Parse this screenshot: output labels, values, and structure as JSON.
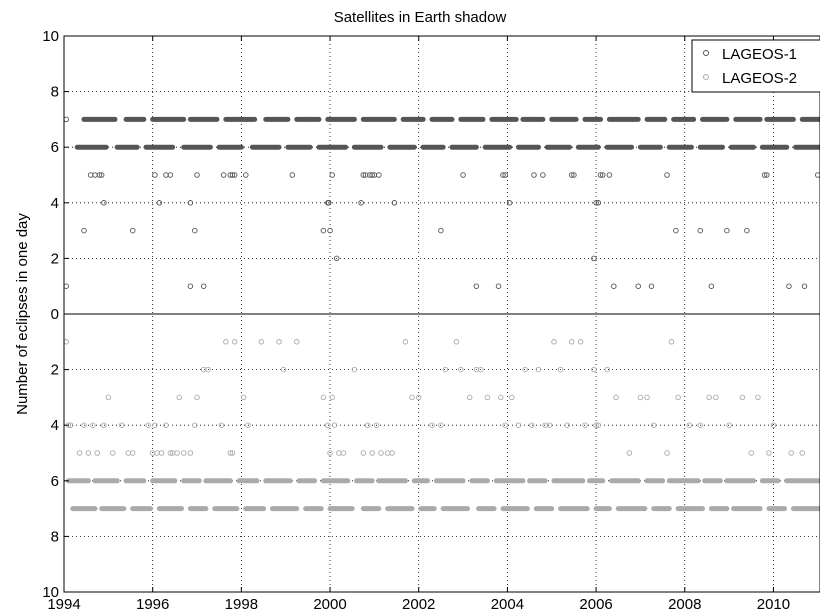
{
  "chart_data": {
    "type": "scatter",
    "title": "Satellites in Earth shadow",
    "xlabel": "",
    "ylabel": "Number of eclipses in one day",
    "xlim": [
      1994,
      2011.05
    ],
    "ylim_top": [
      0,
      10
    ],
    "ylim_bottom": [
      0,
      10
    ],
    "x_ticks": [
      "1994",
      "1996",
      "1998",
      "2000",
      "2002",
      "2004",
      "2006",
      "2008",
      "2010"
    ],
    "y_ticks": [
      "10",
      "8",
      "6",
      "4",
      "2",
      "0",
      "2",
      "4",
      "6",
      "8",
      "10"
    ],
    "grid": true,
    "legend_position": "top-right",
    "series": [
      {
        "name": "LAGEOS-1",
        "color": "#555555",
        "panel": "top",
        "bands": [
          {
            "y": 7,
            "segments": [
              [
                1994.45,
                1995.15
              ],
              [
                1995.4,
                1995.8
              ],
              [
                1996.0,
                1996.7
              ],
              [
                1996.85,
                1997.45
              ],
              [
                1997.65,
                1998.3
              ],
              [
                1998.55,
                1999.05
              ],
              [
                1999.25,
                1999.75
              ],
              [
                1999.95,
                2000.55
              ],
              [
                2000.75,
                2001.45
              ],
              [
                2001.65,
                2002.1
              ],
              [
                2002.3,
                2002.75
              ],
              [
                2002.95,
                2003.45
              ],
              [
                2003.65,
                2004.2
              ],
              [
                2004.35,
                2004.8
              ],
              [
                2005.0,
                2005.55
              ],
              [
                2005.75,
                2006.1
              ],
              [
                2006.3,
                2006.95
              ],
              [
                2007.15,
                2007.55
              ],
              [
                2007.75,
                2008.2
              ],
              [
                2008.4,
                2008.95
              ],
              [
                2009.15,
                2009.7
              ],
              [
                2009.85,
                2010.45
              ],
              [
                2010.65,
                2011.05
              ]
            ]
          },
          {
            "y": 6,
            "segments": [
              [
                1994.3,
                1994.95
              ],
              [
                1995.2,
                1995.65
              ],
              [
                1995.85,
                1996.45
              ],
              [
                1996.7,
                1997.3
              ],
              [
                1997.5,
                1998.0
              ],
              [
                1998.25,
                1998.85
              ],
              [
                1999.05,
                1999.55
              ],
              [
                1999.75,
                2000.35
              ],
              [
                2000.55,
                2001.15
              ],
              [
                2001.35,
                2001.9
              ],
              [
                2002.1,
                2002.55
              ],
              [
                2002.75,
                2003.3
              ],
              [
                2003.5,
                2004.05
              ],
              [
                2004.25,
                2004.7
              ],
              [
                2004.9,
                2005.4
              ],
              [
                2005.6,
                2006.05
              ],
              [
                2006.25,
                2006.8
              ],
              [
                2007.0,
                2007.45
              ],
              [
                2007.65,
                2008.15
              ],
              [
                2008.35,
                2008.85
              ],
              [
                2009.05,
                2009.55
              ],
              [
                2009.75,
                2010.3
              ],
              [
                2010.5,
                2011.05
              ]
            ]
          }
        ],
        "points": [
          [
            1994.05,
            7
          ],
          [
            1994.05,
            1
          ],
          [
            1994.45,
            3
          ],
          [
            1994.6,
            5
          ],
          [
            1994.7,
            5
          ],
          [
            1994.8,
            5
          ],
          [
            1994.85,
            5
          ],
          [
            1994.9,
            4
          ],
          [
            1995.55,
            3
          ],
          [
            1996.05,
            5
          ],
          [
            1996.15,
            4
          ],
          [
            1996.3,
            5
          ],
          [
            1996.4,
            5
          ],
          [
            1996.85,
            4
          ],
          [
            1996.85,
            1
          ],
          [
            1996.95,
            3
          ],
          [
            1997.0,
            5
          ],
          [
            1997.15,
            1
          ],
          [
            1997.6,
            5
          ],
          [
            1997.75,
            5
          ],
          [
            1997.8,
            5
          ],
          [
            1997.85,
            5
          ],
          [
            1998.1,
            5
          ],
          [
            1999.15,
            5
          ],
          [
            1999.85,
            3
          ],
          [
            1999.95,
            4
          ],
          [
            1999.97,
            4
          ],
          [
            2000.0,
            3
          ],
          [
            2000.05,
            5
          ],
          [
            2000.15,
            2
          ],
          [
            2000.7,
            4
          ],
          [
            2000.75,
            5
          ],
          [
            2000.8,
            5
          ],
          [
            2000.9,
            5
          ],
          [
            2000.95,
            5
          ],
          [
            2001.0,
            5
          ],
          [
            2001.1,
            5
          ],
          [
            2001.45,
            4
          ],
          [
            2002.5,
            3
          ],
          [
            2003.0,
            5
          ],
          [
            2003.3,
            1
          ],
          [
            2003.8,
            1
          ],
          [
            2003.9,
            5
          ],
          [
            2003.95,
            5
          ],
          [
            2004.05,
            4
          ],
          [
            2004.6,
            5
          ],
          [
            2004.8,
            5
          ],
          [
            2005.45,
            5
          ],
          [
            2005.5,
            5
          ],
          [
            2005.95,
            2
          ],
          [
            2006.0,
            4
          ],
          [
            2006.05,
            4
          ],
          [
            2006.1,
            5
          ],
          [
            2006.15,
            5
          ],
          [
            2006.3,
            5
          ],
          [
            2006.4,
            1
          ],
          [
            2006.95,
            1
          ],
          [
            2007.25,
            1
          ],
          [
            2007.6,
            5
          ],
          [
            2007.8,
            3
          ],
          [
            2008.35,
            3
          ],
          [
            2008.6,
            1
          ],
          [
            2008.95,
            3
          ],
          [
            2009.4,
            3
          ],
          [
            2009.8,
            5
          ],
          [
            2009.85,
            5
          ],
          [
            2010.35,
            1
          ],
          [
            2010.7,
            1
          ],
          [
            2011.0,
            5
          ]
        ]
      },
      {
        "name": "LAGEOS-2",
        "color": "#aaaaaa",
        "panel": "bottom",
        "bands": [
          {
            "y": 6,
            "segments": [
              [
                1994.1,
                1994.55
              ],
              [
                1994.7,
                1995.2
              ],
              [
                1995.4,
                1995.8
              ],
              [
                1996.0,
                1996.5
              ],
              [
                1996.7,
                1997.05
              ],
              [
                1997.2,
                1997.75
              ],
              [
                1997.95,
                1998.35
              ],
              [
                1998.55,
                1999.1
              ],
              [
                1999.3,
                1999.65
              ],
              [
                1999.85,
                2000.4
              ],
              [
                2000.6,
                2000.95
              ],
              [
                2001.1,
                2001.7
              ],
              [
                2001.9,
                2002.2
              ],
              [
                2002.4,
                2003.0
              ],
              [
                2003.2,
                2003.55
              ],
              [
                2003.75,
                2004.35
              ],
              [
                2004.5,
                2004.85
              ],
              [
                2005.05,
                2005.7
              ],
              [
                2005.85,
                2006.15
              ],
              [
                2006.35,
                2006.95
              ],
              [
                2007.15,
                2007.5
              ],
              [
                2007.65,
                2008.3
              ],
              [
                2008.45,
                2008.8
              ],
              [
                2008.95,
                2009.55
              ],
              [
                2009.75,
                2010.1
              ],
              [
                2010.3,
                2011.05
              ]
            ]
          },
          {
            "y": 7,
            "segments": [
              [
                1994.2,
                1994.7
              ],
              [
                1994.85,
                1995.35
              ],
              [
                1995.55,
                1995.95
              ],
              [
                1996.15,
                1996.65
              ],
              [
                1996.85,
                1997.2
              ],
              [
                1997.4,
                1997.9
              ],
              [
                1998.1,
                1998.5
              ],
              [
                1998.7,
                1999.25
              ],
              [
                1999.45,
                1999.8
              ],
              [
                2000.0,
                2000.5
              ],
              [
                2000.75,
                2001.1
              ],
              [
                2001.3,
                2001.85
              ],
              [
                2002.05,
                2002.35
              ],
              [
                2002.55,
                2003.1
              ],
              [
                2003.35,
                2003.7
              ],
              [
                2003.9,
                2004.45
              ],
              [
                2004.65,
                2005.0
              ],
              [
                2005.2,
                2005.8
              ],
              [
                2006.0,
                2006.3
              ],
              [
                2006.5,
                2007.1
              ],
              [
                2007.3,
                2007.65
              ],
              [
                2007.85,
                2008.4
              ],
              [
                2008.6,
                2008.95
              ],
              [
                2009.1,
                2009.7
              ],
              [
                2009.9,
                2010.25
              ],
              [
                2010.45,
                2011.05
              ]
            ]
          }
        ],
        "points": [
          [
            1994.05,
            1
          ],
          [
            1994.1,
            4
          ],
          [
            1994.15,
            4
          ],
          [
            1994.35,
            5
          ],
          [
            1994.45,
            4
          ],
          [
            1994.55,
            5
          ],
          [
            1994.65,
            4
          ],
          [
            1994.75,
            5
          ],
          [
            1994.9,
            4
          ],
          [
            1995.0,
            3
          ],
          [
            1995.1,
            5
          ],
          [
            1995.3,
            4
          ],
          [
            1995.45,
            5
          ],
          [
            1995.55,
            5
          ],
          [
            1995.9,
            4
          ],
          [
            1996.0,
            5
          ],
          [
            1996.05,
            4
          ],
          [
            1996.1,
            5
          ],
          [
            1996.2,
            5
          ],
          [
            1996.3,
            4
          ],
          [
            1996.4,
            5
          ],
          [
            1996.45,
            5
          ],
          [
            1996.55,
            5
          ],
          [
            1996.6,
            3
          ],
          [
            1996.7,
            5
          ],
          [
            1996.85,
            5
          ],
          [
            1996.95,
            4
          ],
          [
            1997.0,
            3
          ],
          [
            1997.15,
            2
          ],
          [
            1997.25,
            2
          ],
          [
            1997.55,
            4
          ],
          [
            1997.65,
            1
          ],
          [
            1997.75,
            5
          ],
          [
            1997.8,
            5
          ],
          [
            1997.85,
            1
          ],
          [
            1998.05,
            3
          ],
          [
            1998.15,
            4
          ],
          [
            1998.45,
            1
          ],
          [
            1998.85,
            1
          ],
          [
            1998.95,
            2
          ],
          [
            1999.25,
            1
          ],
          [
            1999.85,
            3
          ],
          [
            1999.95,
            4
          ],
          [
            2000.0,
            5
          ],
          [
            2000.05,
            3
          ],
          [
            2000.1,
            4
          ],
          [
            2000.2,
            5
          ],
          [
            2000.3,
            5
          ],
          [
            2000.55,
            2
          ],
          [
            2000.75,
            5
          ],
          [
            2000.85,
            4
          ],
          [
            2000.95,
            5
          ],
          [
            2001.05,
            4
          ],
          [
            2001.15,
            5
          ],
          [
            2001.3,
            5
          ],
          [
            2001.4,
            5
          ],
          [
            2001.7,
            1
          ],
          [
            2001.85,
            3
          ],
          [
            2002.0,
            3
          ],
          [
            2002.3,
            4
          ],
          [
            2002.5,
            4
          ],
          [
            2002.6,
            2
          ],
          [
            2002.85,
            1
          ],
          [
            2002.95,
            2
          ],
          [
            2003.15,
            3
          ],
          [
            2003.3,
            2
          ],
          [
            2003.4,
            2
          ],
          [
            2003.55,
            3
          ],
          [
            2003.85,
            3
          ],
          [
            2003.95,
            4
          ],
          [
            2004.1,
            3
          ],
          [
            2004.25,
            4
          ],
          [
            2004.4,
            2
          ],
          [
            2004.55,
            4
          ],
          [
            2004.7,
            2
          ],
          [
            2004.85,
            4
          ],
          [
            2004.95,
            4
          ],
          [
            2005.05,
            1
          ],
          [
            2005.2,
            2
          ],
          [
            2005.35,
            4
          ],
          [
            2005.45,
            1
          ],
          [
            2005.65,
            1
          ],
          [
            2005.75,
            4
          ],
          [
            2005.95,
            2
          ],
          [
            2006.0,
            4
          ],
          [
            2006.05,
            4
          ],
          [
            2006.25,
            2
          ],
          [
            2006.45,
            3
          ],
          [
            2006.75,
            5
          ],
          [
            2007.0,
            3
          ],
          [
            2007.15,
            3
          ],
          [
            2007.3,
            4
          ],
          [
            2007.6,
            5
          ],
          [
            2007.7,
            1
          ],
          [
            2007.85,
            3
          ],
          [
            2008.1,
            4
          ],
          [
            2008.35,
            4
          ],
          [
            2008.55,
            3
          ],
          [
            2008.7,
            3
          ],
          [
            2009.0,
            4
          ],
          [
            2009.3,
            3
          ],
          [
            2009.5,
            5
          ],
          [
            2009.65,
            3
          ],
          [
            2009.9,
            5
          ],
          [
            2010.0,
            4
          ],
          [
            2010.4,
            5
          ],
          [
            2010.65,
            5
          ]
        ]
      }
    ]
  }
}
